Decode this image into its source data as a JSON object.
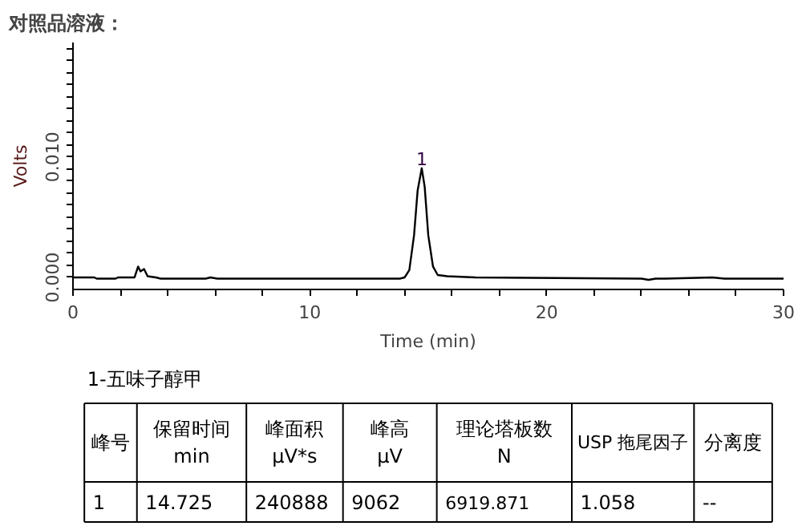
{
  "chart_data": {
    "type": "line",
    "title": "对照品溶液：",
    "subtitle": "1-五味子醇甲",
    "xlabel": "Time (min)",
    "ylabel": "Volts",
    "x": [
      0,
      0.9,
      1.0,
      1.8,
      1.9,
      2.6,
      2.75,
      2.85,
      3.0,
      3.15,
      3.5,
      3.7,
      5.6,
      5.8,
      6.1,
      13.8,
      14.0,
      14.2,
      14.4,
      14.55,
      14.725,
      14.85,
      15.0,
      15.2,
      15.4,
      15.8,
      17.0,
      24.0,
      24.3,
      24.6,
      25.0,
      27.0,
      27.5,
      30
    ],
    "series": [
      {
        "color": "#000000",
        "values": [
          0,
          0,
          -0.0001,
          -0.0001,
          0,
          0,
          0.0009,
          0.0005,
          0.0007,
          0.0001,
          0,
          -0.0001,
          -0.0001,
          0,
          -0.0001,
          -0.0001,
          0,
          0.0006,
          0.0035,
          0.0072,
          0.009062,
          0.0075,
          0.0035,
          0.0009,
          0.0002,
          0.0001,
          0,
          -0.0001,
          -0.0002,
          -0.0001,
          -0.0001,
          0,
          -0.0001,
          -0.0001
        ]
      }
    ],
    "xlim": [
      0,
      30
    ],
    "ylim": [
      -0.001,
      0.0195
    ],
    "xticks": [
      0,
      {
        "value": 2,
        "label": null
      },
      {
        "value": 4,
        "label": null
      },
      {
        "value": 6,
        "label": null
      },
      {
        "value": 8,
        "label": null
      },
      10,
      {
        "value": 12,
        "label": null
      },
      {
        "value": 14,
        "label": null
      },
      {
        "value": 16,
        "label": null
      },
      {
        "value": 18,
        "label": null
      },
      20,
      {
        "value": 22,
        "label": null
      },
      {
        "value": 24,
        "label": null
      },
      {
        "value": 26,
        "label": null
      },
      {
        "value": 28,
        "label": null
      },
      30
    ],
    "yticks": [
      {
        "value": 0,
        "label": "0.000"
      },
      {
        "value": 0.001,
        "label": null
      },
      {
        "value": 0.002,
        "label": null
      },
      {
        "value": 0.003,
        "label": null
      },
      {
        "value": 0.004,
        "label": null
      },
      {
        "value": 0.005,
        "label": null
      },
      {
        "value": 0.006,
        "label": null
      },
      {
        "value": 0.007,
        "label": null
      },
      {
        "value": 0.008,
        "label": null
      },
      {
        "value": 0.009,
        "label": null
      },
      {
        "value": 0.01,
        "label": "0.010"
      },
      {
        "value": 0.011,
        "label": null
      },
      {
        "value": 0.012,
        "label": null
      },
      {
        "value": 0.013,
        "label": null
      },
      {
        "value": 0.014,
        "label": null
      },
      {
        "value": 0.015,
        "label": null
      },
      {
        "value": 0.016,
        "label": null
      },
      {
        "value": 0.017,
        "label": null
      },
      {
        "value": 0.018,
        "label": null
      },
      {
        "value": 0.019,
        "label": null
      }
    ],
    "grid": false,
    "annotations": [
      {
        "text": "1",
        "x": 14.725,
        "y": 0.009062
      },
      "峰号",
      "保留时间\nmin",
      "峰面积\nμV*s",
      "峰高\nμV",
      "理论塔板数\nN",
      "USP 拖尾因子",
      "分离度",
      "1",
      "14.725",
      "240888",
      "9062",
      "6919.871",
      "1.058",
      "--"
    ]
  }
}
